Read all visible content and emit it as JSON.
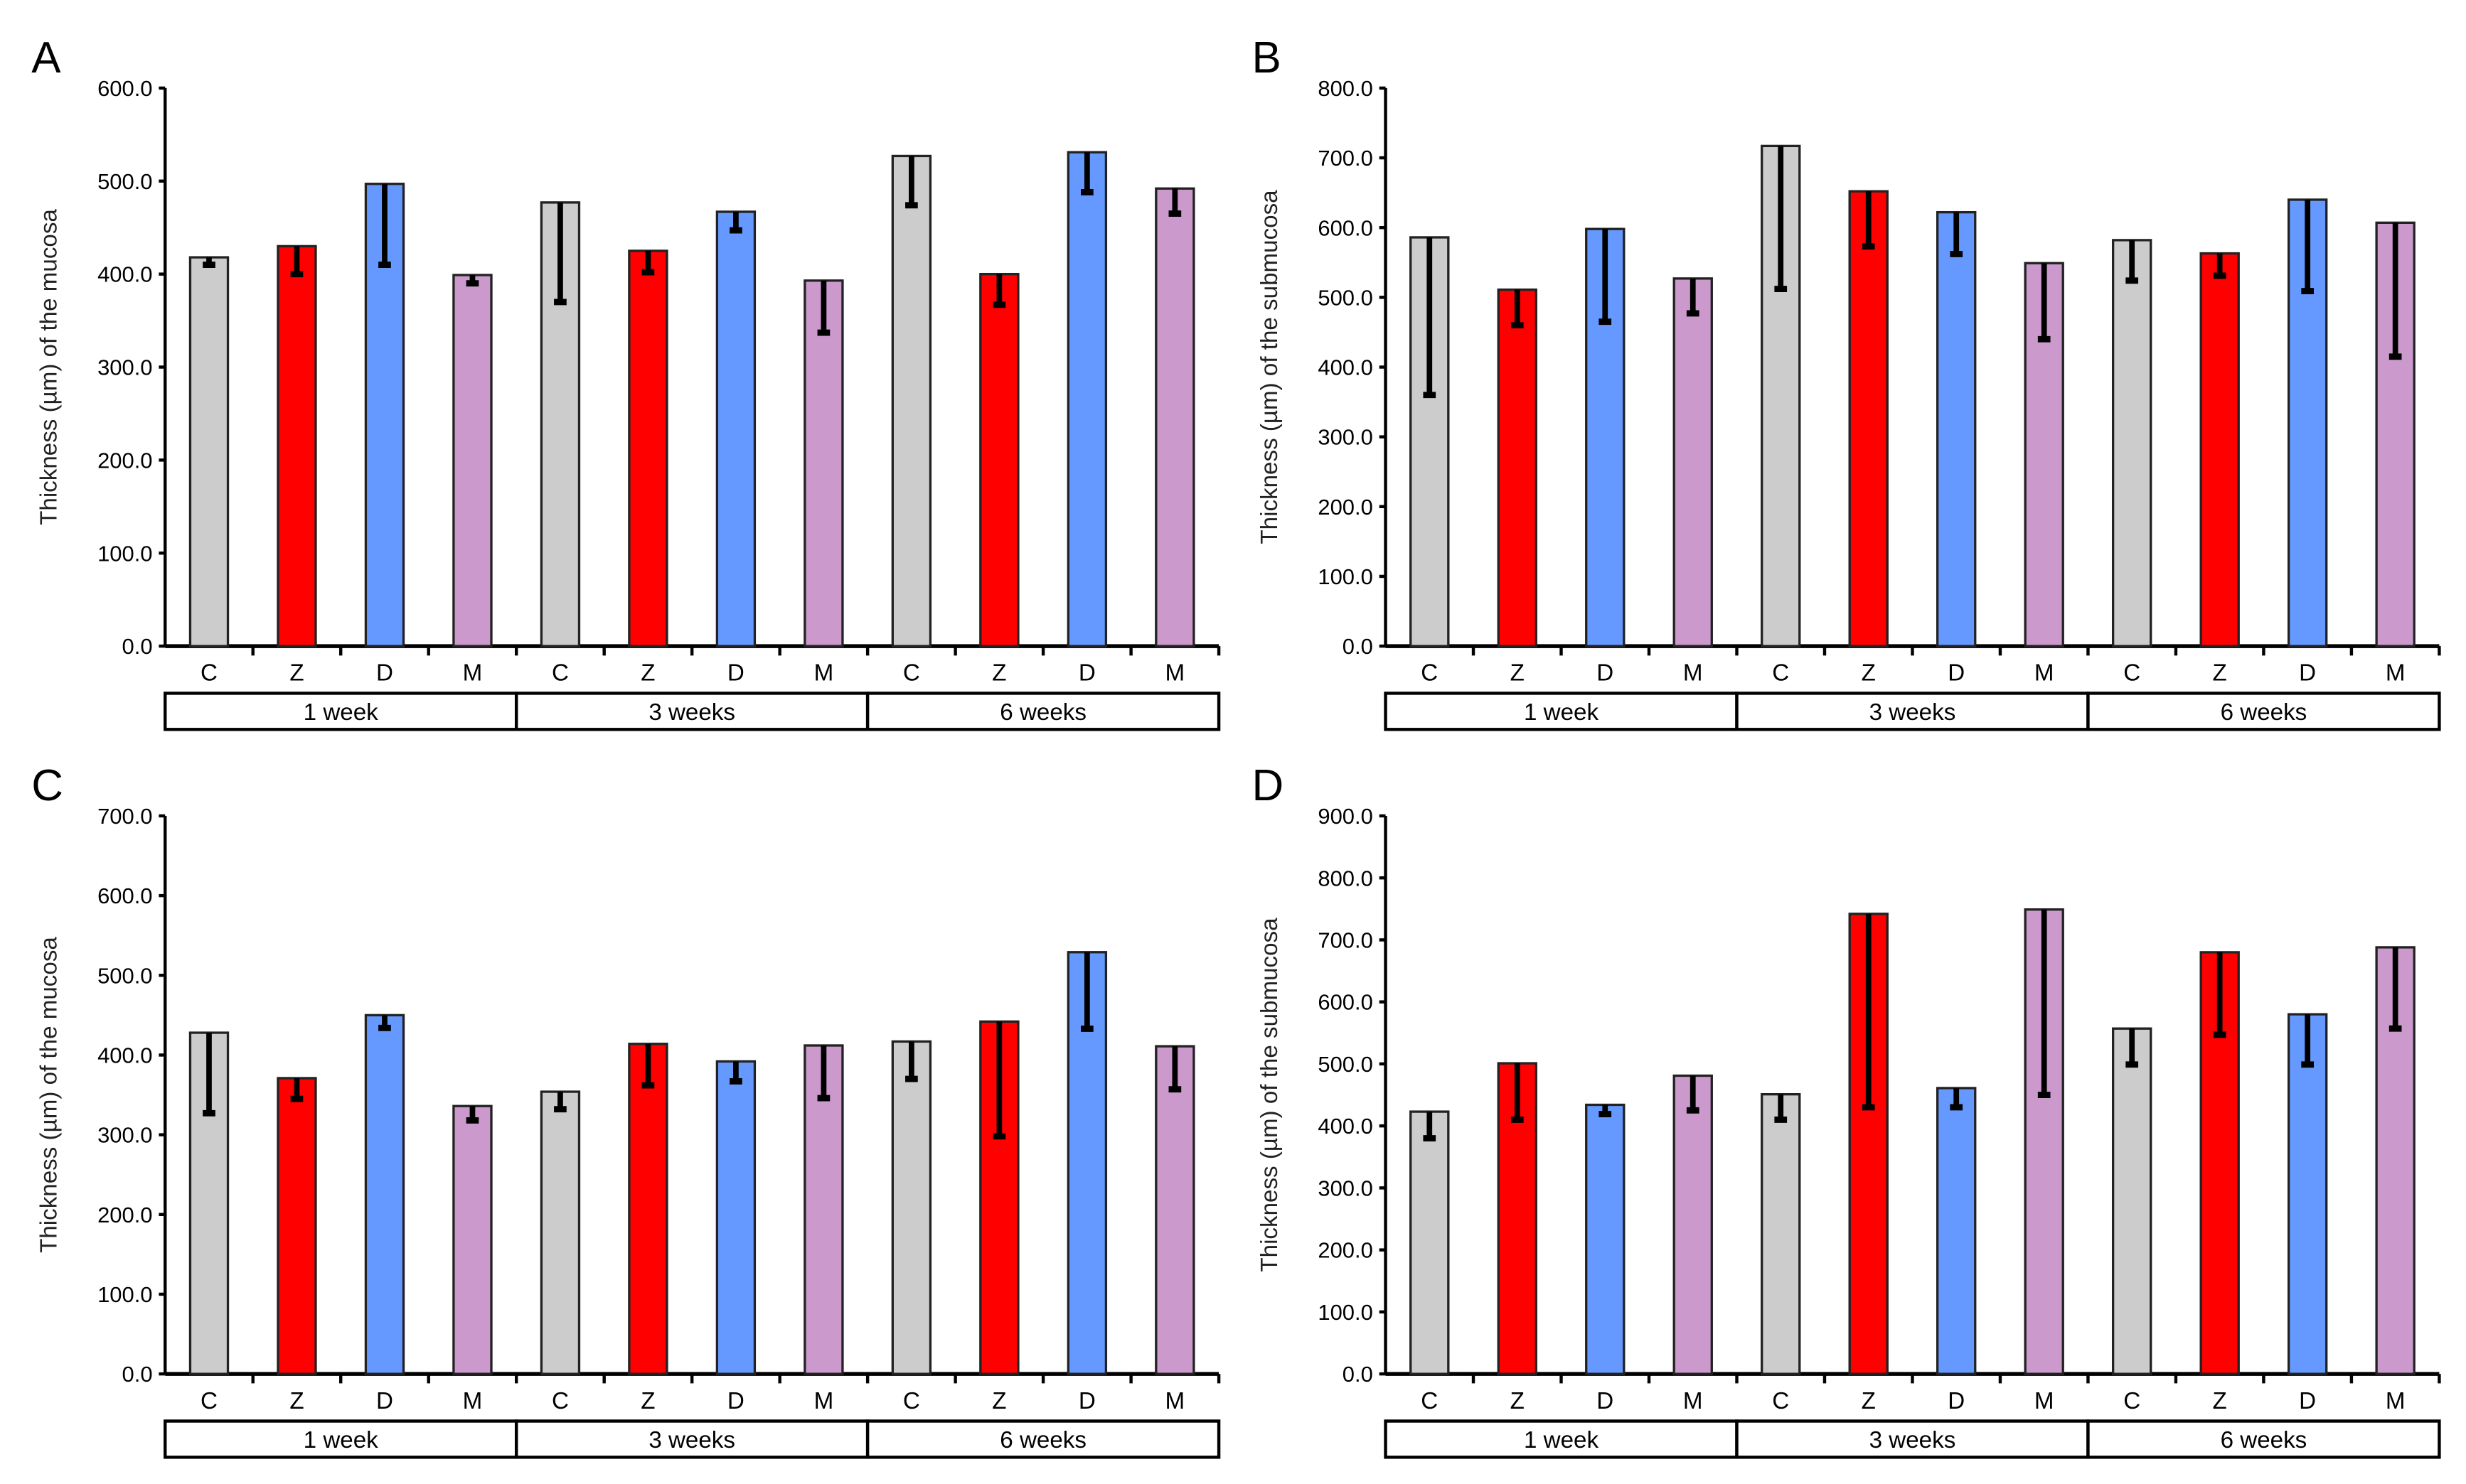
{
  "colors": {
    "C": "#cccccc",
    "Z": "#ff0000",
    "D": "#6699ff",
    "M": "#cc99cc"
  },
  "chart_data": [
    {
      "type": "bar",
      "panel": "A",
      "ylabel": "Thickness (µm) of the mucosa",
      "ylim": [
        0,
        600
      ],
      "yticks": [
        "0.0",
        "100.0",
        "200.0",
        "300.0",
        "400.0",
        "500.0",
        "600.0"
      ],
      "categories": [
        "C",
        "Z",
        "D",
        "M",
        "C",
        "Z",
        "D",
        "M",
        "C",
        "Z",
        "D",
        "M"
      ],
      "groups": [
        "1 week",
        "3 weeks",
        "6 weeks"
      ],
      "values": [
        418,
        430,
        497,
        399,
        477,
        425,
        467,
        393,
        527,
        400,
        531,
        492
      ],
      "error_low": [
        410,
        400,
        410,
        390,
        370,
        402,
        447,
        337,
        474,
        367,
        488,
        465
      ]
    },
    {
      "type": "bar",
      "panel": "B",
      "ylabel": "Thickness (µm) of the submucosa",
      "ylim": [
        0,
        800
      ],
      "yticks": [
        "0.0",
        "100.0",
        "200.0",
        "300.0",
        "400.0",
        "500.0",
        "600.0",
        "700.0",
        "800.0"
      ],
      "categories": [
        "C",
        "Z",
        "D",
        "M",
        "C",
        "Z",
        "D",
        "M",
        "C",
        "Z",
        "D",
        "M"
      ],
      "groups": [
        "1 week",
        "3 weeks",
        "6 weeks"
      ],
      "values": [
        586,
        511,
        598,
        527,
        717,
        652,
        622,
        549,
        582,
        563,
        640,
        607
      ],
      "error_low": [
        360,
        460,
        465,
        477,
        512,
        573,
        562,
        440,
        524,
        531,
        509,
        415
      ]
    },
    {
      "type": "bar",
      "panel": "C",
      "ylabel": "Thickness (µm) of the mucosa",
      "ylim": [
        0,
        700
      ],
      "yticks": [
        "0.0",
        "100.0",
        "200.0",
        "300.0",
        "400.0",
        "500.0",
        "600.0",
        "700.0"
      ],
      "categories": [
        "C",
        "Z",
        "D",
        "M",
        "C",
        "Z",
        "D",
        "M",
        "C",
        "Z",
        "D",
        "M"
      ],
      "groups": [
        "1 week",
        "3 weeks",
        "6 weeks"
      ],
      "values": [
        428,
        371,
        450,
        336,
        354,
        414,
        392,
        412,
        417,
        442,
        529,
        411
      ],
      "error_low": [
        327,
        345,
        434,
        318,
        332,
        362,
        367,
        346,
        370,
        298,
        433,
        357
      ]
    },
    {
      "type": "bar",
      "panel": "D",
      "ylabel": "Thickness (µm) of the submucosa",
      "ylim": [
        0,
        900
      ],
      "yticks": [
        "0.0",
        "100.0",
        "200.0",
        "300.0",
        "400.0",
        "500.0",
        "600.0",
        "700.0",
        "800.0",
        "900.0"
      ],
      "categories": [
        "C",
        "Z",
        "D",
        "M",
        "C",
        "Z",
        "D",
        "M",
        "C",
        "Z",
        "D",
        "M"
      ],
      "groups": [
        "1 week",
        "3 weeks",
        "6 weeks"
      ],
      "values": [
        423,
        501,
        434,
        481,
        451,
        742,
        461,
        749,
        557,
        680,
        580,
        688
      ],
      "error_low": [
        380,
        410,
        419,
        425,
        410,
        430,
        430,
        450,
        499,
        547,
        499,
        557
      ]
    }
  ]
}
